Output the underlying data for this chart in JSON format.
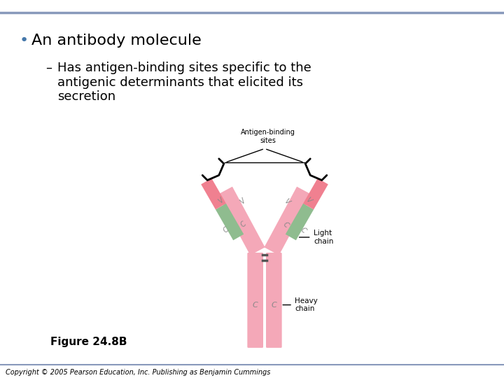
{
  "title_bullet": "An antibody molecule",
  "subtitle": "Has antigen-binding sites specific to the\nantigenic determinants that elicited its\nsecretion",
  "figure_label": "Figure 24.8B",
  "copyright": "Copyright © 2005 Pearson Education, Inc. Publishing as Benjamin Cummings",
  "antigen_binding_label": "Antigen-binding\nsites",
  "light_chain_label": "Light\nchain",
  "heavy_chain_label": "Heavy\nchain",
  "pink_color": "#F4A8B8",
  "green_color": "#8FBC8F",
  "pink_dark": "#F08090",
  "green_dark": "#7AAB7A",
  "background_color": "#FFFFFF",
  "header_line_color": "#8899BB",
  "footer_line_color": "#8899BB",
  "text_color": "#000000"
}
